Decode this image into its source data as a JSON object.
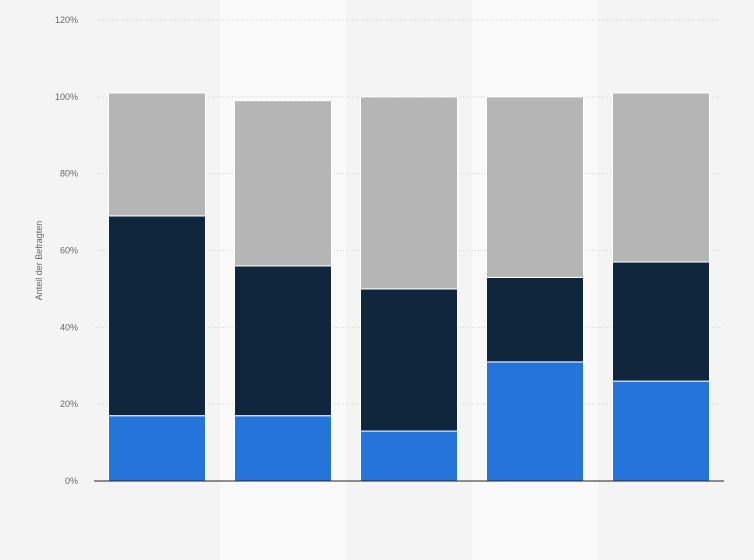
{
  "chart_data": {
    "type": "bar",
    "stacked": true,
    "title": "",
    "xlabel": "",
    "ylabel": "Anteil der Befragten",
    "ylim": [
      0,
      120
    ],
    "y_unit": "%",
    "yticks": [
      0,
      20,
      40,
      60,
      80,
      100,
      120
    ],
    "grid": true,
    "categories": [
      "",
      "",
      "",
      "",
      ""
    ],
    "series": [
      {
        "values": [
          17,
          17,
          13,
          31,
          26
        ],
        "color": "#2474d9"
      },
      {
        "values": [
          52,
          39,
          37,
          22,
          31
        ],
        "color": "#0f263d"
      },
      {
        "values": [
          32,
          43,
          50,
          47,
          44
        ],
        "color": "#b5b5b5"
      }
    ]
  }
}
